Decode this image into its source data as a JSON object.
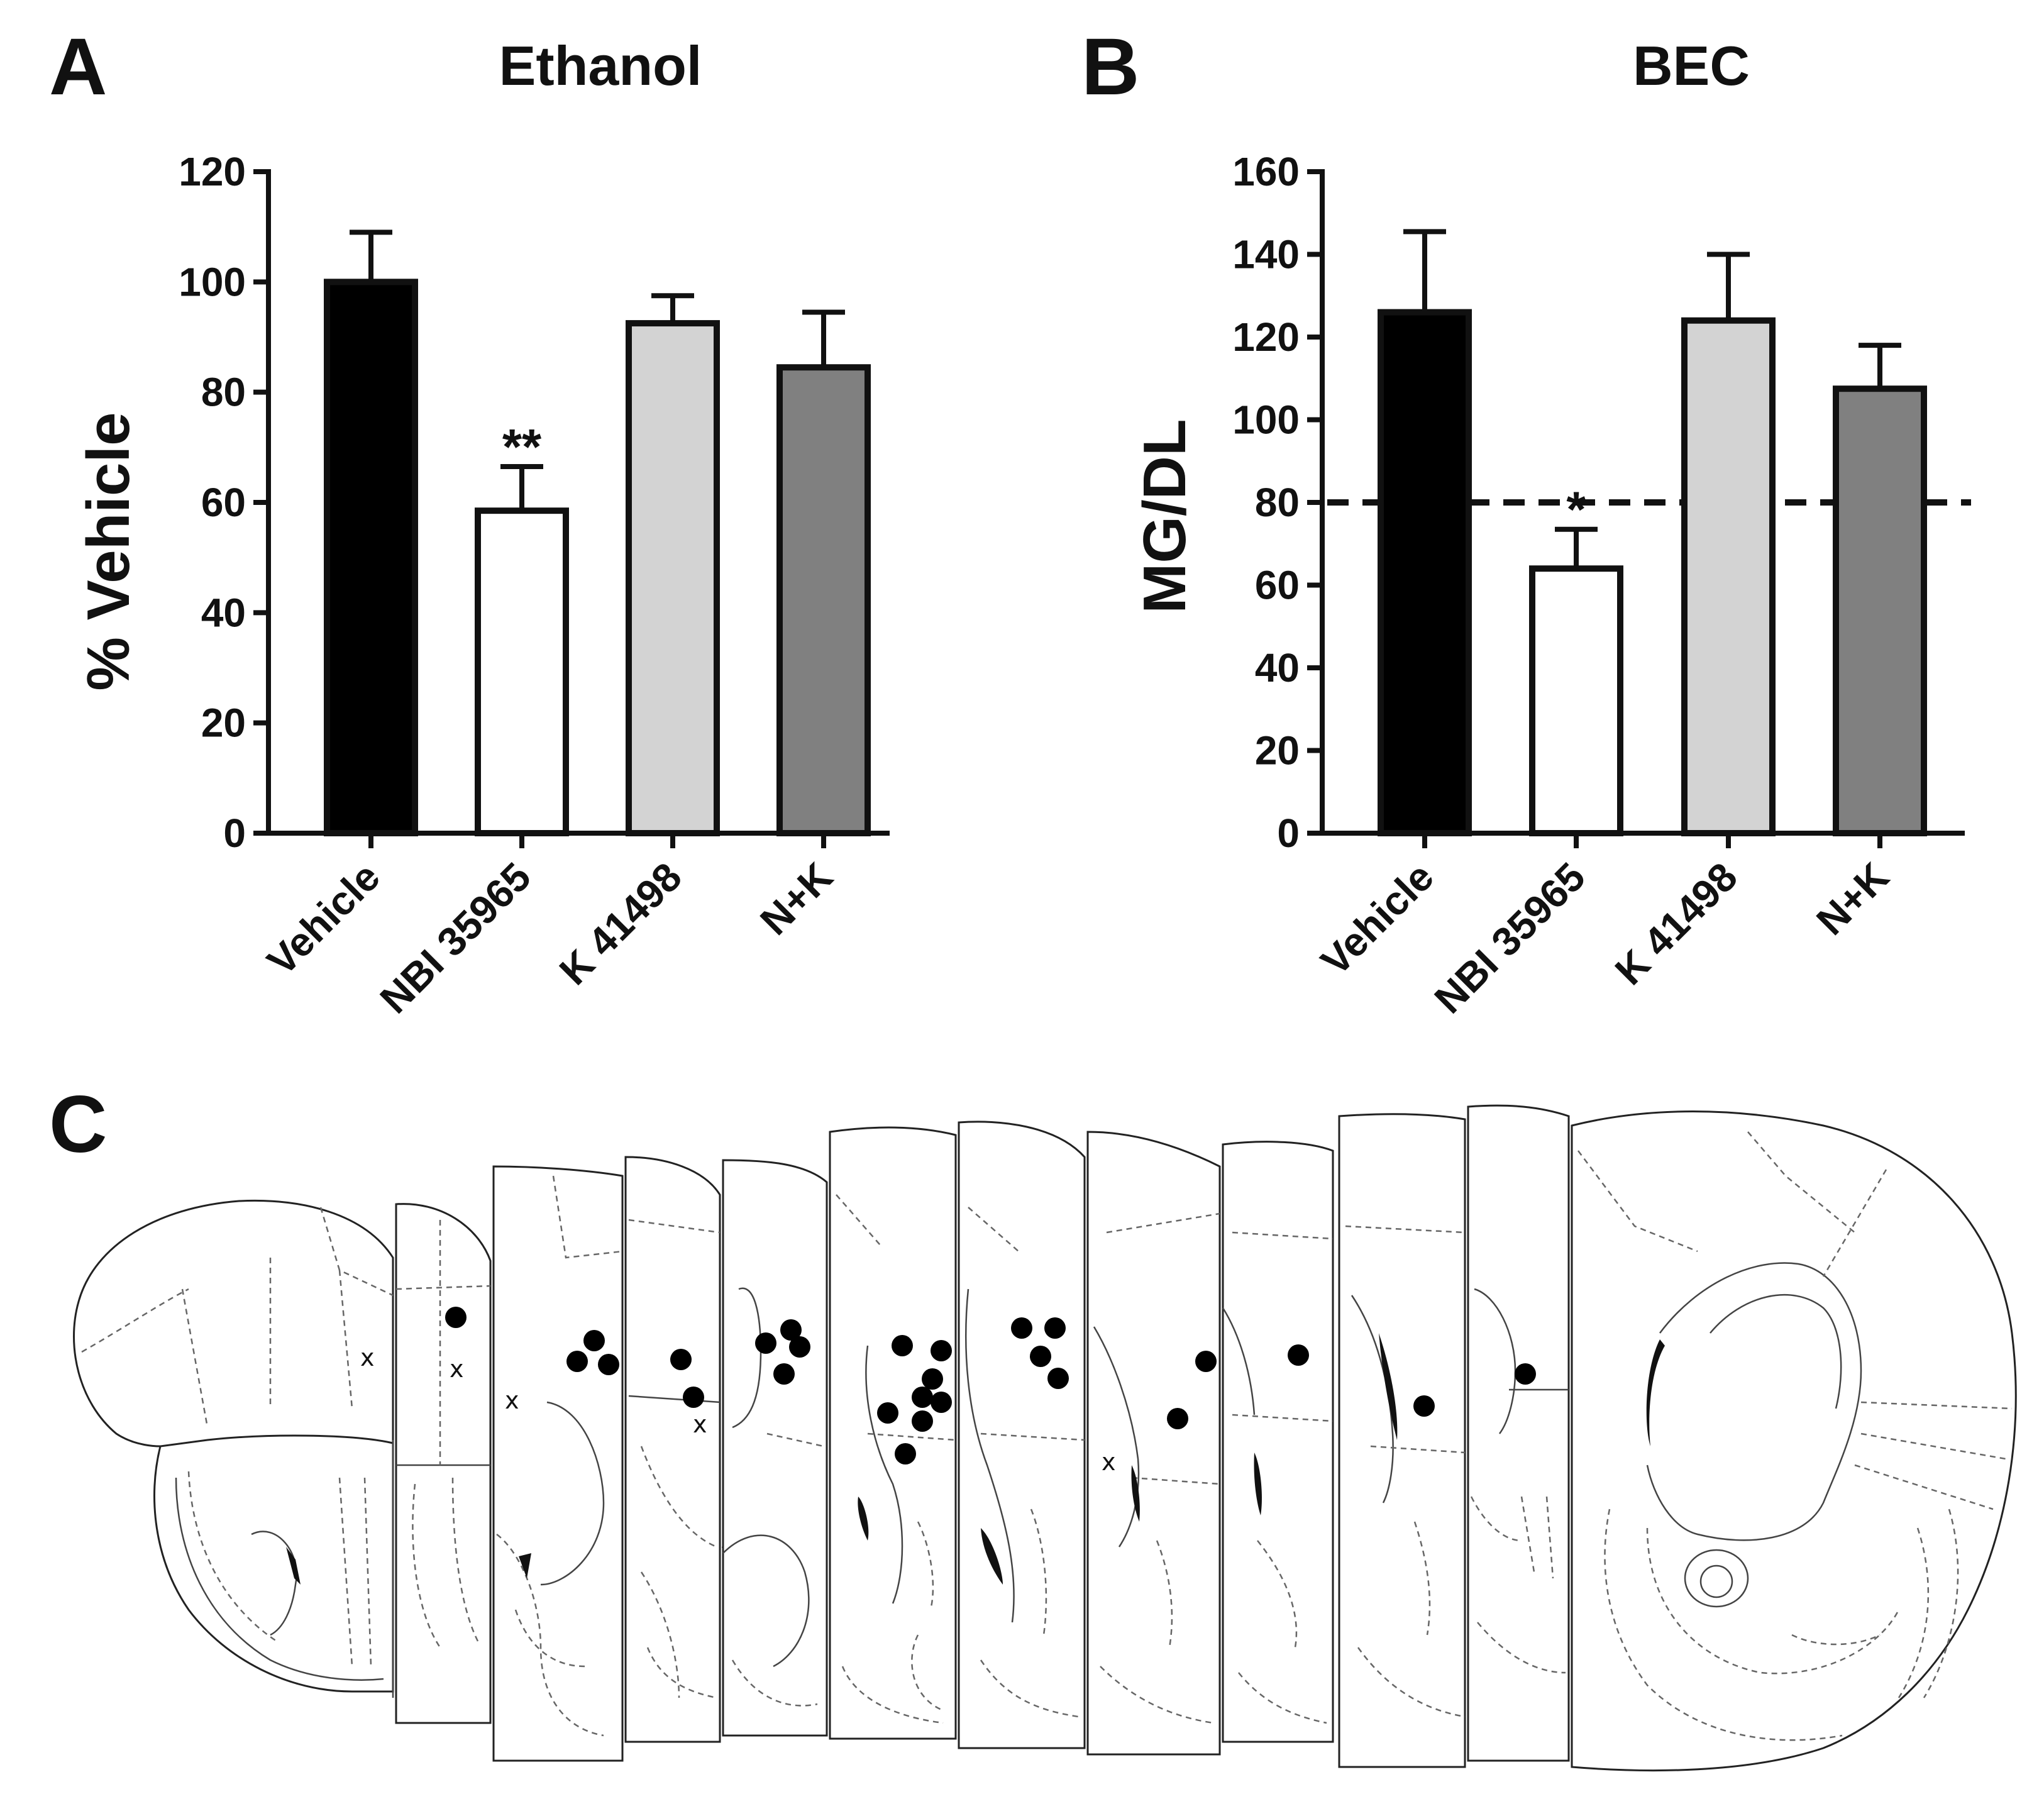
{
  "panels": {
    "a": {
      "letter": "A"
    },
    "b": {
      "letter": "B"
    },
    "c": {
      "letter": "C"
    }
  },
  "chart_data": [
    {
      "type": "bar",
      "title": "Ethanol",
      "xlabel": "",
      "ylabel": "% Vehicle",
      "ylim": [
        0,
        120
      ],
      "yticks": [
        0,
        20,
        40,
        60,
        80,
        100,
        120
      ],
      "categories": [
        "Vehicle",
        "NBI 35965",
        "K 41498",
        "N+K"
      ],
      "values": [
        100,
        58.5,
        92.5,
        84.5
      ],
      "errors": [
        9,
        8,
        5,
        10
      ],
      "colors": [
        "#000000",
        "#ffffff",
        "#d3d3d3",
        "#808080"
      ],
      "annotations": [
        {
          "category": "NBI 35965",
          "text": "**"
        }
      ]
    },
    {
      "type": "bar",
      "title": "BEC",
      "xlabel": "",
      "ylabel": "MG/DL",
      "ylim": [
        0,
        160
      ],
      "yticks": [
        0,
        20,
        40,
        60,
        80,
        100,
        120,
        140,
        160
      ],
      "categories": [
        "Vehicle",
        "NBI 35965",
        "K 41498",
        "N+K"
      ],
      "values": [
        126,
        64,
        124,
        107.5
      ],
      "errors": [
        19.5,
        9.5,
        16,
        10.5
      ],
      "colors": [
        "#000000",
        "#ffffff",
        "#d3d3d3",
        "#808080"
      ],
      "reference_line": 80,
      "annotations": [
        {
          "category": "NBI 35965",
          "text": "*"
        }
      ]
    }
  ],
  "brain_sections": {
    "marker_x_label": "x",
    "count": 10
  }
}
